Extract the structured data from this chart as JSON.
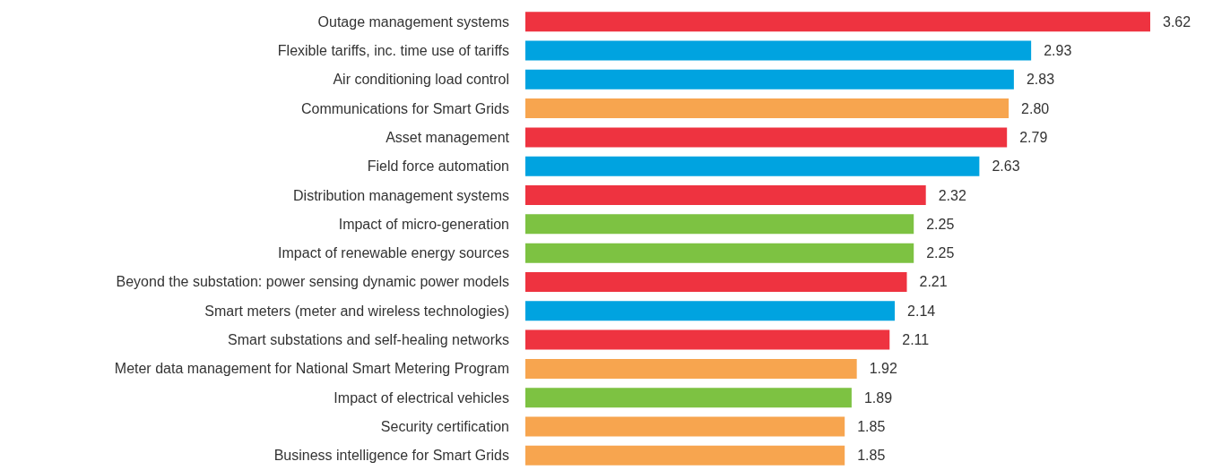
{
  "chart_data": {
    "type": "bar",
    "orientation": "horizontal",
    "categories": [
      "Outage management systems",
      "Flexible tariffs, inc. time use of tariffs",
      "Air conditioning load control",
      "Communications for Smart Grids",
      "Asset management",
      "Field force automation",
      "Distribution management systems",
      "Impact of micro-generation",
      "Impact of renewable energy sources",
      "Beyond the substation: power sensing dynamic power models",
      "Smart meters (meter and wireless technologies)",
      "Smart substations and self-healing networks",
      "Meter data management for National Smart Metering Program",
      "Impact of electrical vehicles",
      "Security certification",
      "Business intelligence for Smart Grids"
    ],
    "values": [
      3.62,
      2.93,
      2.83,
      2.8,
      2.79,
      2.63,
      2.32,
      2.25,
      2.25,
      2.21,
      2.14,
      2.11,
      1.92,
      1.89,
      1.85,
      1.85
    ],
    "value_labels": [
      "3.62",
      "2.93",
      "2.83",
      "2.80",
      "2.79",
      "2.63",
      "2.32",
      "2.25",
      "2.25",
      "2.21",
      "2.14",
      "2.11",
      "1.92",
      "1.89",
      "1.85",
      "1.85"
    ],
    "colors": [
      "#ee3340",
      "#00a3e0",
      "#00a3e0",
      "#f7a54f",
      "#ee3340",
      "#00a3e0",
      "#ee3340",
      "#7dc242",
      "#7dc242",
      "#ee3340",
      "#00a3e0",
      "#ee3340",
      "#f7a54f",
      "#7dc242",
      "#f7a54f",
      "#f7a54f"
    ]
  }
}
